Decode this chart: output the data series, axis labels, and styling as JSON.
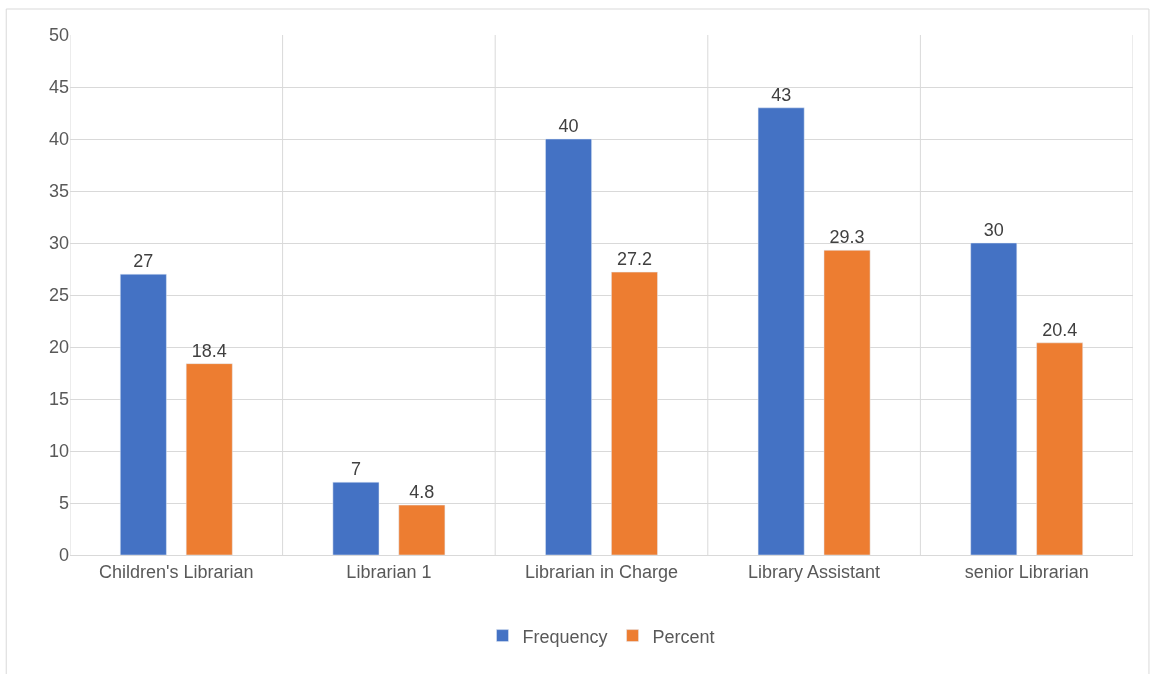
{
  "chart_data": {
    "type": "bar",
    "categories": [
      "Children's Librarian",
      "Librarian 1",
      "Librarian in Charge",
      "Library Assistant",
      "senior Librarian"
    ],
    "series": [
      {
        "name": "Frequency",
        "color": "#4472c4",
        "values": [
          27,
          7,
          40,
          43,
          30
        ]
      },
      {
        "name": "Percent",
        "color": "#ed7d31",
        "values": [
          18.4,
          4.8,
          27.2,
          29.3,
          20.4
        ]
      }
    ],
    "ylim": [
      0,
      50
    ],
    "yticks": [
      0,
      5,
      10,
      15,
      20,
      25,
      30,
      35,
      40,
      45,
      50
    ],
    "grid": true,
    "legend": "bottom",
    "data_labels": true
  }
}
